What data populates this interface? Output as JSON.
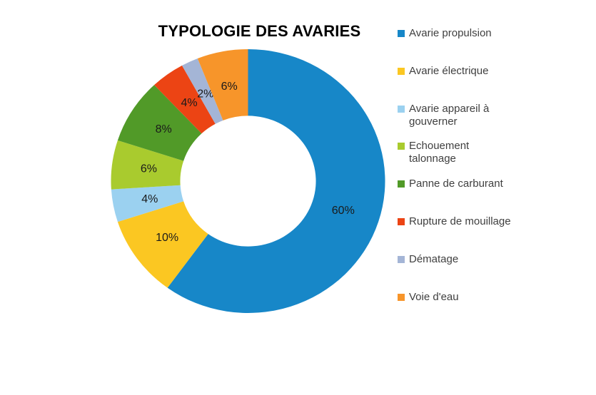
{
  "chart": {
    "title": "TYPOLOGIE DES AVARIES"
  },
  "chart_data": {
    "type": "pie",
    "subtype": "donut",
    "title": "TYPOLOGIE DES AVARIES",
    "categories": [
      "Avarie propulsion",
      "Avarie électrique",
      "Avarie appareil à gouverner",
      "Echouement talonnage",
      "Panne de carburant",
      "Rupture de mouillage",
      "Dématage",
      "Voie d'eau"
    ],
    "values": [
      60,
      10,
      4,
      6,
      8,
      4,
      2,
      6
    ],
    "unit": "%",
    "data_labels": [
      "60%",
      "10%",
      "4%",
      "6%",
      "8%",
      "4%",
      "2%",
      "6%"
    ],
    "colors": [
      "#1787C8",
      "#FBC722",
      "#9BD1F0",
      "#A9CB2E",
      "#519A28",
      "#EC4414",
      "#A4B5D6",
      "#F7952A"
    ],
    "start_angle_deg": 0,
    "direction": "clockwise",
    "hole_ratio": 0.495,
    "grid": false,
    "legend_position": "right",
    "legend_labels_display": [
      "Avarie propulsion",
      "Avarie électrique",
      "Avarie appareil à\ngouverner",
      "Echouement\ntalonnage",
      "Panne de carburant",
      "Rupture de mouillage",
      "Dématage",
      "Voie d'eau"
    ],
    "label_color": "#1A1A1A",
    "legend_text_color": "#3F3F3F"
  }
}
